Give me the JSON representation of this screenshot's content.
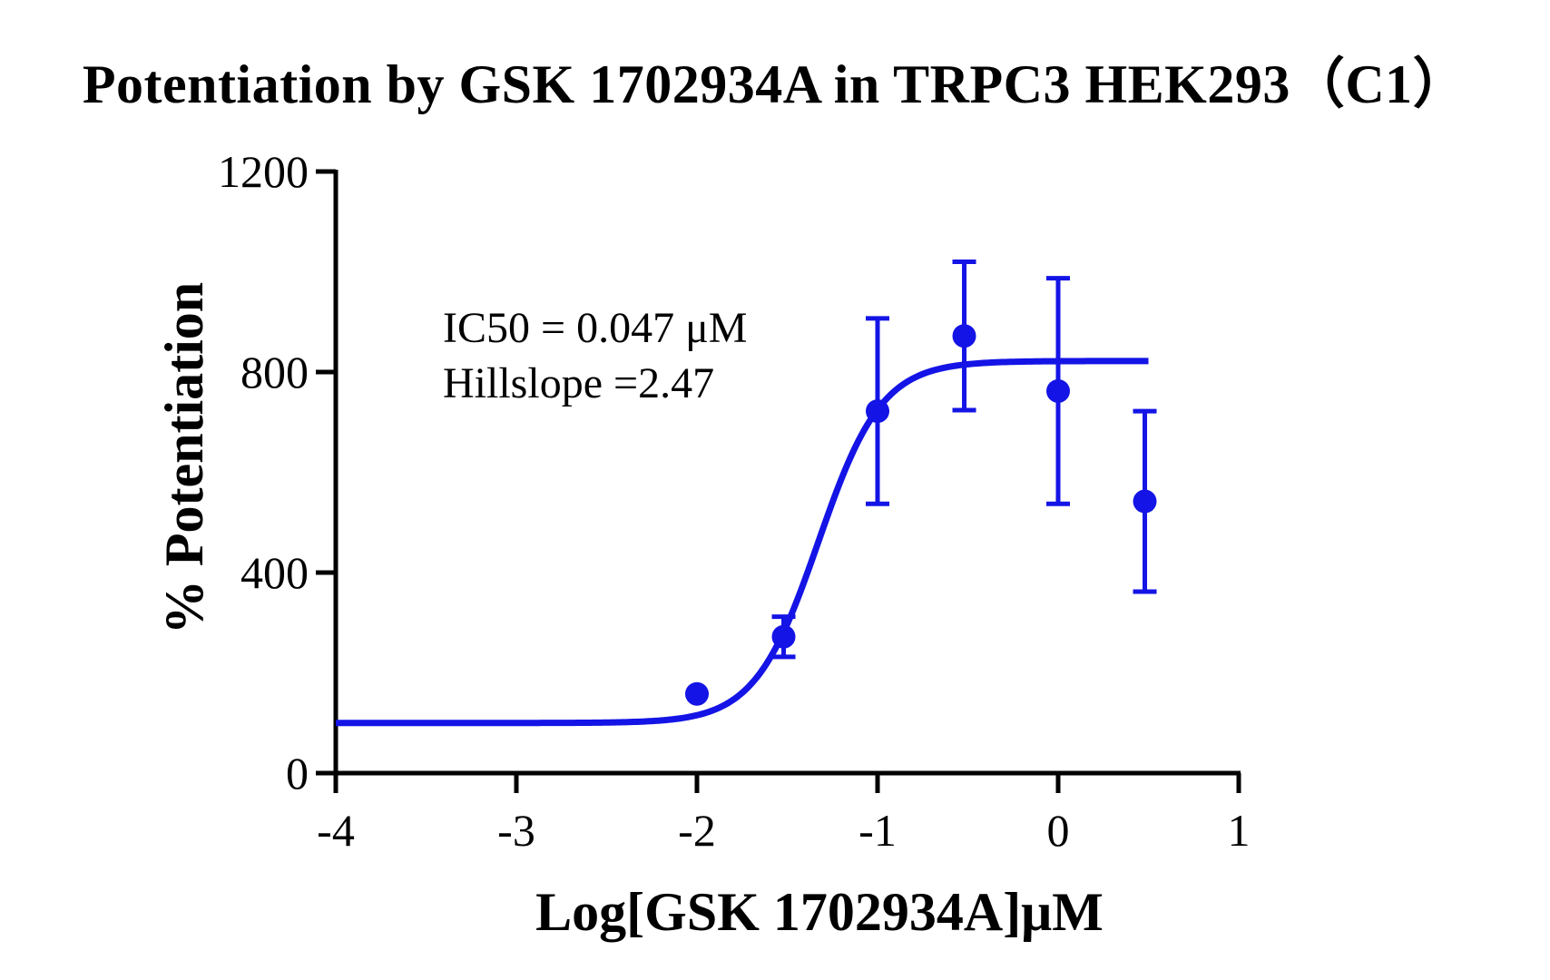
{
  "chart_data": {
    "type": "scatter",
    "title": "Potentiation by GSK 1702934A in TRPC3 HEK293（C1）",
    "xlabel": "Log[GSK 1702934A]μM",
    "ylabel": "% Potentiation",
    "xlim": [
      -4,
      1
    ],
    "ylim": [
      0,
      1200
    ],
    "x_ticks": [
      -4,
      -3,
      -2,
      -1,
      0,
      1
    ],
    "y_ticks": [
      0,
      400,
      800,
      1200
    ],
    "grid": false,
    "legend": "none",
    "color": "#1414e6",
    "series": [
      {
        "points": [
          {
            "x": -2.0,
            "y": 158,
            "err": 0
          },
          {
            "x": -1.52,
            "y": 272,
            "err": 40
          },
          {
            "x": -1.0,
            "y": 722,
            "err": 185
          },
          {
            "x": -0.52,
            "y": 872,
            "err": 148
          },
          {
            "x": 0.0,
            "y": 762,
            "err": 225
          },
          {
            "x": 0.48,
            "y": 542,
            "err": 180
          }
        ],
        "fit": {
          "model": "four-parameter logistic",
          "bottom": 100,
          "top": 822,
          "logEC50": -1.328,
          "hillslope": 2.47,
          "x_range": [
            -4,
            0.5
          ]
        }
      }
    ],
    "annotations": [
      "IC50 = 0.047 μM",
      "Hillslope =2.47"
    ]
  }
}
